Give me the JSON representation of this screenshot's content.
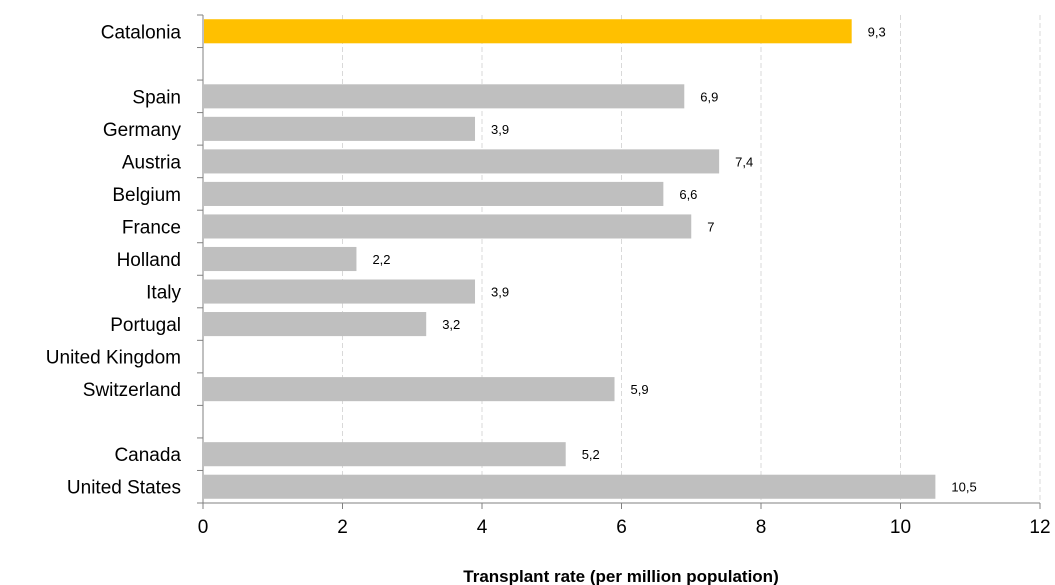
{
  "chart_data": {
    "type": "bar",
    "orientation": "horizontal",
    "xlabel": "Transplant rate (per million population)",
    "xlim": [
      0,
      12
    ],
    "xticks": [
      "0",
      "2",
      "4",
      "6",
      "8",
      "10",
      "12"
    ],
    "grid": "vertical-dashed",
    "colors": {
      "highlight": "#FFC000",
      "default": "#BFBFBF",
      "grid": "#D9D9D9",
      "axis": "#808080"
    },
    "bars": [
      {
        "category": "Catalonia",
        "value": 9.3,
        "label": "9,3",
        "highlight": true
      },
      {
        "category": "",
        "value": null,
        "label": ""
      },
      {
        "category": "Spain",
        "value": 6.9,
        "label": "6,9"
      },
      {
        "category": "Germany",
        "value": 3.9,
        "label": "3,9"
      },
      {
        "category": "Austria",
        "value": 7.4,
        "label": "7,4"
      },
      {
        "category": "Belgium",
        "value": 6.6,
        "label": "6,6"
      },
      {
        "category": "France",
        "value": 7,
        "label": "7"
      },
      {
        "category": "Holland",
        "value": 2.2,
        "label": "2,2"
      },
      {
        "category": "Italy",
        "value": 3.9,
        "label": "3,9"
      },
      {
        "category": "Portugal",
        "value": 3.2,
        "label": "3,2"
      },
      {
        "category": "United Kingdom",
        "value": null,
        "label": ""
      },
      {
        "category": "Switzerland",
        "value": 5.9,
        "label": "5,9"
      },
      {
        "category": "",
        "value": null,
        "label": ""
      },
      {
        "category": "Canada",
        "value": 5.2,
        "label": "5,2"
      },
      {
        "category": "United States",
        "value": 10.5,
        "label": "10,5"
      }
    ]
  }
}
